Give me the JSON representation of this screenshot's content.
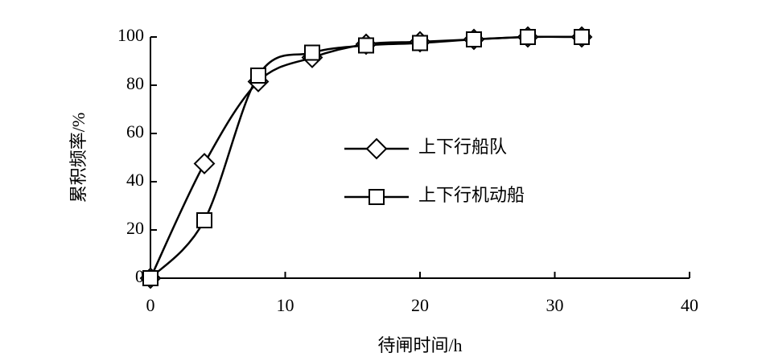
{
  "chart_data": {
    "type": "line",
    "x_label": "待闸时间/h",
    "y_label": "累积频率/%",
    "x": [
      0,
      4,
      8,
      12,
      16,
      20,
      24,
      28,
      32
    ],
    "series": [
      {
        "name": "上下行船队",
        "marker": "diamond",
        "color": "#000000",
        "values": [
          0,
          47.5,
          81.5,
          91.5,
          97,
          98,
          99,
          100,
          100
        ]
      },
      {
        "name": "上下行机动船",
        "marker": "square",
        "color": "#000000",
        "values": [
          0,
          24,
          84,
          93.5,
          96.5,
          97.5,
          99,
          100,
          100
        ]
      }
    ],
    "xlim": [
      0,
      40
    ],
    "xticks": [
      0,
      10,
      20,
      30,
      40
    ],
    "ylim": [
      0,
      100
    ],
    "yticks": [
      0,
      20,
      40,
      60,
      80,
      100
    ],
    "grid": false,
    "smooth": true
  }
}
